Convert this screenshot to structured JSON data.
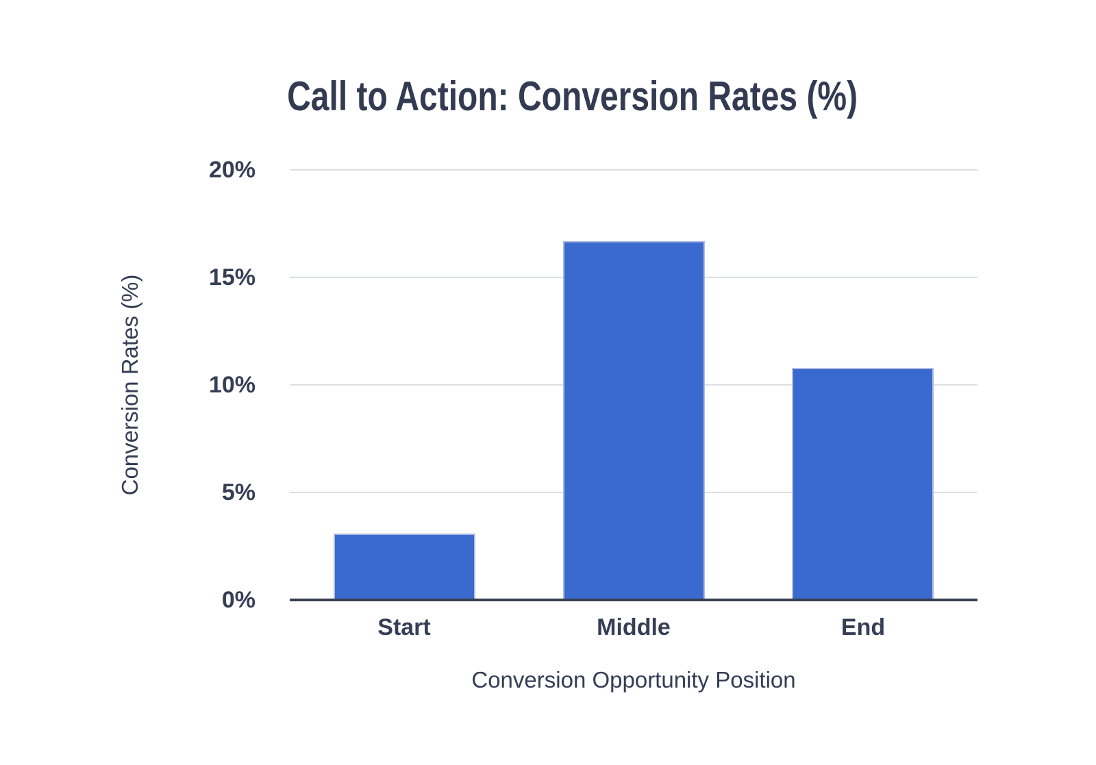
{
  "chart_data": {
    "type": "bar",
    "title": "Call to Action: Conversion Rates (%)",
    "xlabel": "Conversion Opportunity Position",
    "ylabel": "Conversion Rates (%)",
    "categories": [
      "Start",
      "Middle",
      "End"
    ],
    "values": [
      3.1,
      16.7,
      10.8
    ],
    "value_unit": "%",
    "ylim": [
      0,
      20
    ],
    "yticks": [
      {
        "value": 0,
        "label": "0%"
      },
      {
        "value": 5,
        "label": "5%"
      },
      {
        "value": 10,
        "label": "10%"
      },
      {
        "value": 15,
        "label": "15%"
      },
      {
        "value": 20,
        "label": "20%"
      }
    ],
    "grid": "horizontal",
    "legend_position": "none",
    "colors": {
      "background": "#FFFFFF",
      "bar_fill": "#3A6ACD",
      "bar_border": "#AFBCE2",
      "gridline": "#DBDFE5",
      "axis_line": "#363E52",
      "title_text": "#333B52",
      "tick_text": "#363E56",
      "axis_title_text": "#343D54"
    }
  }
}
